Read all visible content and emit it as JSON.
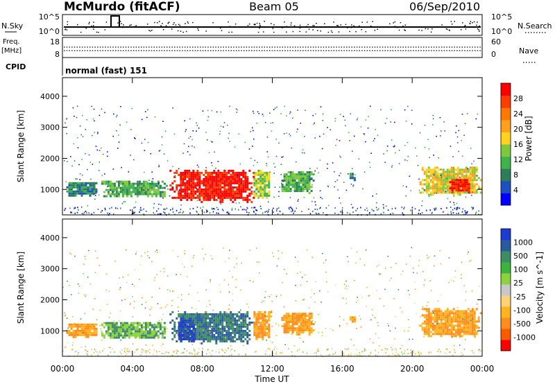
{
  "header": {
    "station": "McMurdo (fitACF)",
    "beam": "Beam 05",
    "date": "06/Sep/2010"
  },
  "sky_panel": {
    "left_label": "N.Sky",
    "right_label": "N.Search",
    "left_ticks": [
      "10^5",
      "10^0"
    ],
    "right_ticks": [
      "10^5",
      "10^0"
    ]
  },
  "freq_panel": {
    "left_label_1": "Freq.",
    "left_label_2": "[MHz]",
    "right_label": "Nave",
    "left_ticks": [
      "18",
      "8"
    ],
    "right_ticks": [
      "60",
      "0"
    ]
  },
  "cpid_panel": {
    "label": "CPID",
    "mode": "normal (fast) 151"
  },
  "chart_data": [
    {
      "type": "heatmap",
      "name": "Power",
      "ylabel": "Slant Range [km]",
      "yticks": [
        1000,
        2000,
        3000,
        4000
      ],
      "ylim": [
        180,
        4600
      ],
      "xlim": [
        0,
        24
      ],
      "colorbar_label": "Power [dB]",
      "colorbar_ticks": [
        "4",
        "8",
        "12",
        "16",
        "20",
        "24",
        "28"
      ],
      "colorbar_colors": [
        "#0000ff",
        "#2050c0",
        "#2e7d5a",
        "#3cb44b",
        "#7dc83c",
        "#ffd21e",
        "#ffa01e",
        "#ff7800",
        "#ff3c00",
        "#ff0000"
      ],
      "echo_regions": [
        {
          "x": [
            0.1,
            2.0
          ],
          "y": [
            800,
            1300
          ],
          "level": 2
        },
        {
          "x": [
            2.1,
            6.0
          ],
          "y": [
            750,
            1350
          ],
          "level": 3
        },
        {
          "x": [
            6.0,
            11.0
          ],
          "y": [
            600,
            1700
          ],
          "level": 9
        },
        {
          "x": [
            10.8,
            11.9
          ],
          "y": [
            700,
            1700
          ],
          "level": 4
        },
        {
          "x": [
            12.4,
            14.4
          ],
          "y": [
            900,
            1650
          ],
          "level": 3
        },
        {
          "x": [
            16.3,
            16.7
          ],
          "y": [
            1300,
            1600
          ],
          "level": 2
        },
        {
          "x": [
            20.3,
            24.0
          ],
          "y": [
            800,
            1800
          ],
          "level": 5
        },
        {
          "x": [
            22.0,
            23.3
          ],
          "y": [
            900,
            1400
          ],
          "level": 9
        }
      ]
    },
    {
      "type": "heatmap",
      "name": "Velocity",
      "ylabel": "Slant Range [km]",
      "yticks": [
        1000,
        2000,
        3000,
        4000
      ],
      "ylim": [
        180,
        4600
      ],
      "xlim": [
        0,
        24
      ],
      "xticks": [
        "00:00",
        "04:00",
        "08:00",
        "12:00",
        "16:00",
        "20:00",
        "00:00"
      ],
      "xlabel": "Time UT",
      "colorbar_label": "Velocity [m s^-1]",
      "colorbar_ticks": [
        "-1000",
        "-500",
        "-100",
        "-25",
        "25",
        "100",
        "500",
        "1000"
      ],
      "colorbar_colors": [
        "#ff0000",
        "#ff5a00",
        "#ff8c1e",
        "#ffb41e",
        "#ffd278",
        "#c8c8c8",
        "#8cd23c",
        "#3cb43c",
        "#3c8c64",
        "#2a5aa0",
        "#1e3cd2"
      ],
      "echo_regions": [
        {
          "x": [
            0.1,
            2.0
          ],
          "y": [
            800,
            1300
          ],
          "velocity": -100
        },
        {
          "x": [
            2.1,
            6.0
          ],
          "y": [
            750,
            1350
          ],
          "velocity": 100
        },
        {
          "x": [
            6.0,
            11.0
          ],
          "y": [
            600,
            1700
          ],
          "velocity": 500
        },
        {
          "x": [
            6.5,
            7.5
          ],
          "y": [
            650,
            1500
          ],
          "velocity": 1000
        },
        {
          "x": [
            10.8,
            11.9
          ],
          "y": [
            700,
            1700
          ],
          "velocity": -100
        },
        {
          "x": [
            12.4,
            14.4
          ],
          "y": [
            900,
            1650
          ],
          "velocity": -100
        },
        {
          "x": [
            16.3,
            16.7
          ],
          "y": [
            1300,
            1600
          ],
          "velocity": -100
        },
        {
          "x": [
            20.3,
            24.0
          ],
          "y": [
            800,
            1800
          ],
          "velocity": -100
        }
      ]
    }
  ]
}
